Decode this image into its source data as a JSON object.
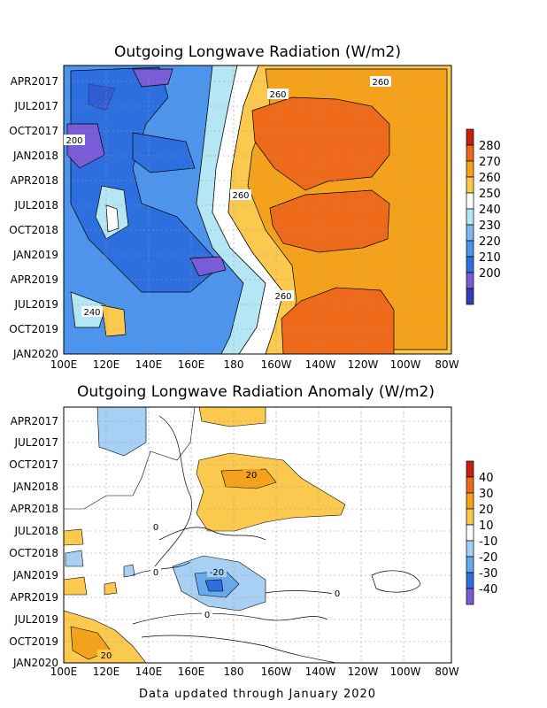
{
  "chart_data": [
    {
      "type": "heatmap",
      "title": "Outgoing Longwave Radiation (W/m2)",
      "x_tick_labels": [
        "100E",
        "120E",
        "140E",
        "160E",
        "180",
        "160W",
        "140W",
        "120W",
        "100W",
        "80W"
      ],
      "y_tick_labels": [
        "APR2017",
        "JUL2017",
        "OCT2017",
        "JAN2018",
        "APR2018",
        "JUL2018",
        "OCT2018",
        "JAN2019",
        "APR2019",
        "JUL2019",
        "OCT2019",
        "JAN2020"
      ],
      "colorbar": {
        "levels": [
          200,
          210,
          220,
          230,
          240,
          250,
          260,
          270,
          280
        ],
        "colors": [
          "#3a3ab8",
          "#7a5cd8",
          "#2e6fe0",
          "#4c94ec",
          "#82b6f2",
          "#b4e6f4",
          "#ffffff",
          "#fbc94e",
          "#f4a21c",
          "#ee6a1a",
          "#c81e0e"
        ]
      },
      "contour_labels": [
        "260",
        "260",
        "200",
        "260",
        "240",
        "260"
      ],
      "grid": true
    },
    {
      "type": "heatmap",
      "title": "Outgoing Longwave Radiation Anomaly (W/m2)",
      "x_tick_labels": [
        "100E",
        "120E",
        "140E",
        "160E",
        "180",
        "160W",
        "140W",
        "120W",
        "100W",
        "80W"
      ],
      "y_tick_labels": [
        "APR2017",
        "JUL2017",
        "OCT2017",
        "JAN2018",
        "APR2018",
        "JUL2018",
        "OCT2018",
        "JAN2019",
        "APR2019",
        "JUL2019",
        "OCT2019",
        "JAN2020"
      ],
      "colorbar": {
        "levels": [
          40,
          30,
          20,
          10,
          -10,
          -20,
          -30,
          -40
        ],
        "colors": [
          "#c81e0e",
          "#ee6a1a",
          "#f4a21c",
          "#fbc94e",
          "#ffffff",
          "#a8d0f4",
          "#68a8ec",
          "#2e6fe0",
          "#7a5cd8"
        ]
      },
      "contour_labels": [
        "20",
        "0",
        "0",
        "-20",
        "0",
        "0",
        "20"
      ],
      "grid": true
    }
  ],
  "footer": "Data updated through January 2020"
}
